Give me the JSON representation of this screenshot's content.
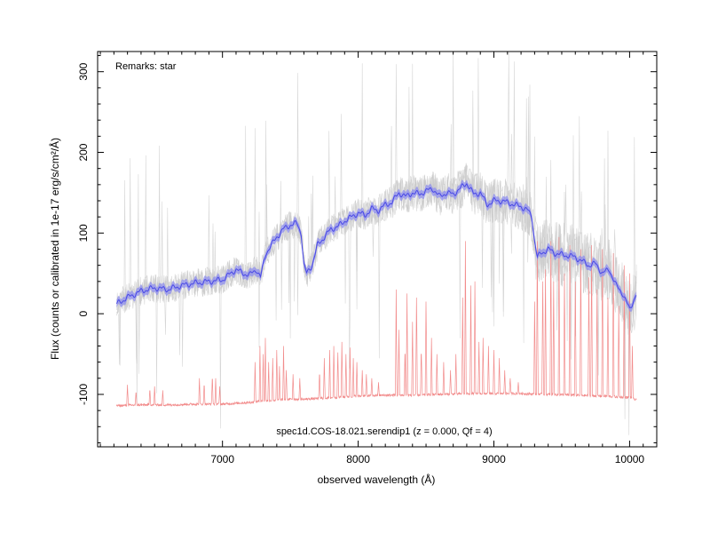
{
  "chart_data": {
    "type": "line",
    "xlabel": "observed wavelength (Å)",
    "ylabel": "Flux (counts or calibrated in 1e-17 erg/s/cm²/Å)",
    "xlim": [
      6080,
      10200
    ],
    "ylim": [
      -165,
      325
    ],
    "x_ticks": [
      7000,
      8000,
      9000,
      10000
    ],
    "y_ticks": [
      -100,
      0,
      100,
      200,
      300
    ],
    "grid": false,
    "annotations": {
      "remarks": "Remarks: star",
      "caption": "spec1d.COS-18.021.serendip1 (z = 0.000, Qf = 4)"
    },
    "colors": {
      "raw": "#c8c8c8",
      "model": "#4848e6",
      "model_band": "#8a8af0",
      "sky": "#f28c8c"
    },
    "series": [
      {
        "name": "",
        "role": "smoothed spectrum",
        "x": [
          6220,
          6300,
          6400,
          6500,
          6600,
          6700,
          6800,
          6900,
          7000,
          7100,
          7150,
          7200,
          7250,
          7280,
          7320,
          7360,
          7400,
          7450,
          7500,
          7550,
          7580,
          7600,
          7620,
          7660,
          7700,
          7750,
          7800,
          7850,
          7900,
          7950,
          8000,
          8050,
          8100,
          8150,
          8200,
          8250,
          8300,
          8350,
          8400,
          8450,
          8500,
          8550,
          8600,
          8650,
          8700,
          8750,
          8800,
          8850,
          8900,
          8950,
          9000,
          9050,
          9100,
          9150,
          9200,
          9250,
          9280,
          9300,
          9320,
          9350,
          9400,
          9450,
          9500,
          9550,
          9600,
          9650,
          9700,
          9750,
          9800,
          9850,
          9900,
          9950,
          10000,
          10050
        ],
        "values": [
          12,
          20,
          28,
          32,
          30,
          35,
          38,
          40,
          42,
          55,
          50,
          48,
          55,
          45,
          75,
          85,
          95,
          105,
          110,
          112,
          100,
          60,
          50,
          60,
          85,
          95,
          105,
          108,
          115,
          120,
          125,
          122,
          130,
          128,
          135,
          138,
          150,
          145,
          150,
          148,
          152,
          155,
          145,
          150,
          148,
          155,
          162,
          148,
          150,
          135,
          140,
          140,
          138,
          135,
          133,
          128,
          120,
          90,
          70,
          75,
          80,
          75,
          73,
          72,
          70,
          65,
          60,
          62,
          50,
          55,
          35,
          25,
          5,
          25
        ]
      },
      {
        "name": "",
        "role": "sky spectrum",
        "x": [
          6220,
          6400,
          6600,
          6800,
          7000,
          7200,
          7300,
          7400,
          7500,
          7600,
          7700,
          7800,
          7900,
          8000,
          8200,
          8400,
          8600,
          8800,
          9000,
          9200,
          9400,
          9600,
          9800,
          10000,
          10050
        ],
        "values": [
          -114,
          -113,
          -113,
          -112,
          -112,
          -110,
          -108,
          -107,
          -106,
          -106,
          -105,
          -104,
          -103,
          -102,
          -101,
          -101,
          -100,
          -99,
          -99,
          -99,
          -100,
          -101,
          -102,
          -104,
          -107
        ],
        "line_wavelengths": [
          6300,
          6363,
          6465,
          6500,
          6560,
          6830,
          6865,
          6925,
          6950,
          6980,
          7240,
          7276,
          7300,
          7316,
          7340,
          7370,
          7400,
          7420,
          7450,
          7470,
          7520,
          7570,
          7715,
          7750,
          7790,
          7820,
          7850,
          7880,
          7910,
          7940,
          7964,
          7990,
          8030,
          8060,
          8100,
          8150,
          8280,
          8300,
          8345,
          8360,
          8400,
          8430,
          8465,
          8500,
          8540,
          8580,
          8630,
          8680,
          8720,
          8770,
          8790,
          8830,
          8860,
          8890,
          8920,
          8960,
          9000,
          9040,
          9080,
          9120,
          9180,
          9300,
          9320,
          9360,
          9380,
          9420,
          9440,
          9480,
          9520,
          9560,
          9600,
          9640,
          9700,
          9720,
          9760,
          9800,
          9840,
          9880,
          9920,
          9960,
          10000,
          10020
        ],
        "line_peaks": [
          -88,
          -95,
          -92,
          -90,
          -95,
          -80,
          -85,
          -75,
          -80,
          -90,
          -60,
          -40,
          -50,
          -30,
          -60,
          -55,
          -45,
          -65,
          -40,
          -70,
          -75,
          -80,
          -70,
          -55,
          -45,
          -40,
          -48,
          -35,
          -50,
          -42,
          -55,
          -60,
          -70,
          -75,
          -80,
          -85,
          30,
          -20,
          -40,
          25,
          -10,
          20,
          -40,
          15,
          -30,
          -50,
          -60,
          -70,
          -50,
          20,
          90,
          35,
          40,
          -35,
          -30,
          -40,
          -45,
          -55,
          -70,
          -80,
          -85,
          15,
          90,
          40,
          55,
          90,
          40,
          95,
          50,
          85,
          40,
          80,
          45,
          85,
          30,
          80,
          20,
          75,
          10,
          60,
          50,
          -40
        ]
      }
    ]
  }
}
